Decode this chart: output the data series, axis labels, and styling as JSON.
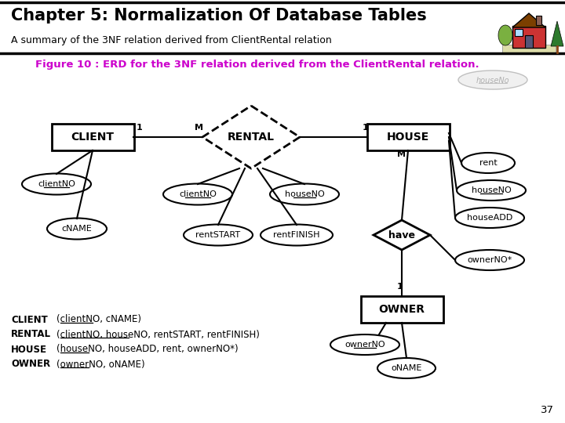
{
  "title": "Chapter 5: Normalization Of Database Tables",
  "subtitle": "A summary of the 3NF relation derived from ClientRental relation",
  "figure_caption": "Figure 10 : ERD for the 3NF relation derived from the ClientRental relation.",
  "background_color": "#ffffff",
  "title_color": "#000000",
  "subtitle_color": "#000000",
  "caption_color": "#cc00cc",
  "page_number": "37",
  "houseno_label": "houseNo"
}
